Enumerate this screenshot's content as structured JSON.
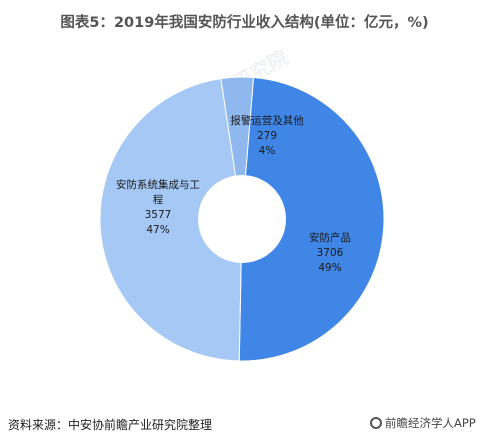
{
  "page": {
    "title": "图表5：2019年我国安防行业收入结构(单位：亿元，%)",
    "source": "资料来源：中安协前瞻产业研究院整理",
    "brand": "前瞻经济学人APP",
    "watermark": "前瞻产业研究院"
  },
  "chart_data": {
    "type": "pie",
    "donut": true,
    "title": "图表5：2019年我国安防行业收入结构(单位：亿元，%)",
    "unit": "亿元",
    "slices": [
      {
        "name": "安防产品",
        "value": 3706,
        "percent": "49%",
        "color": "#3f86e6"
      },
      {
        "name": "安防系统集成与工程",
        "label_lines": [
          "安防系统集成与工",
          "程"
        ],
        "value": 3577,
        "percent": "47%",
        "color": "#a6c8f4"
      },
      {
        "name": "报警运营及其他",
        "value": 279,
        "percent": "4%",
        "color": "#8fb8ee"
      }
    ]
  }
}
